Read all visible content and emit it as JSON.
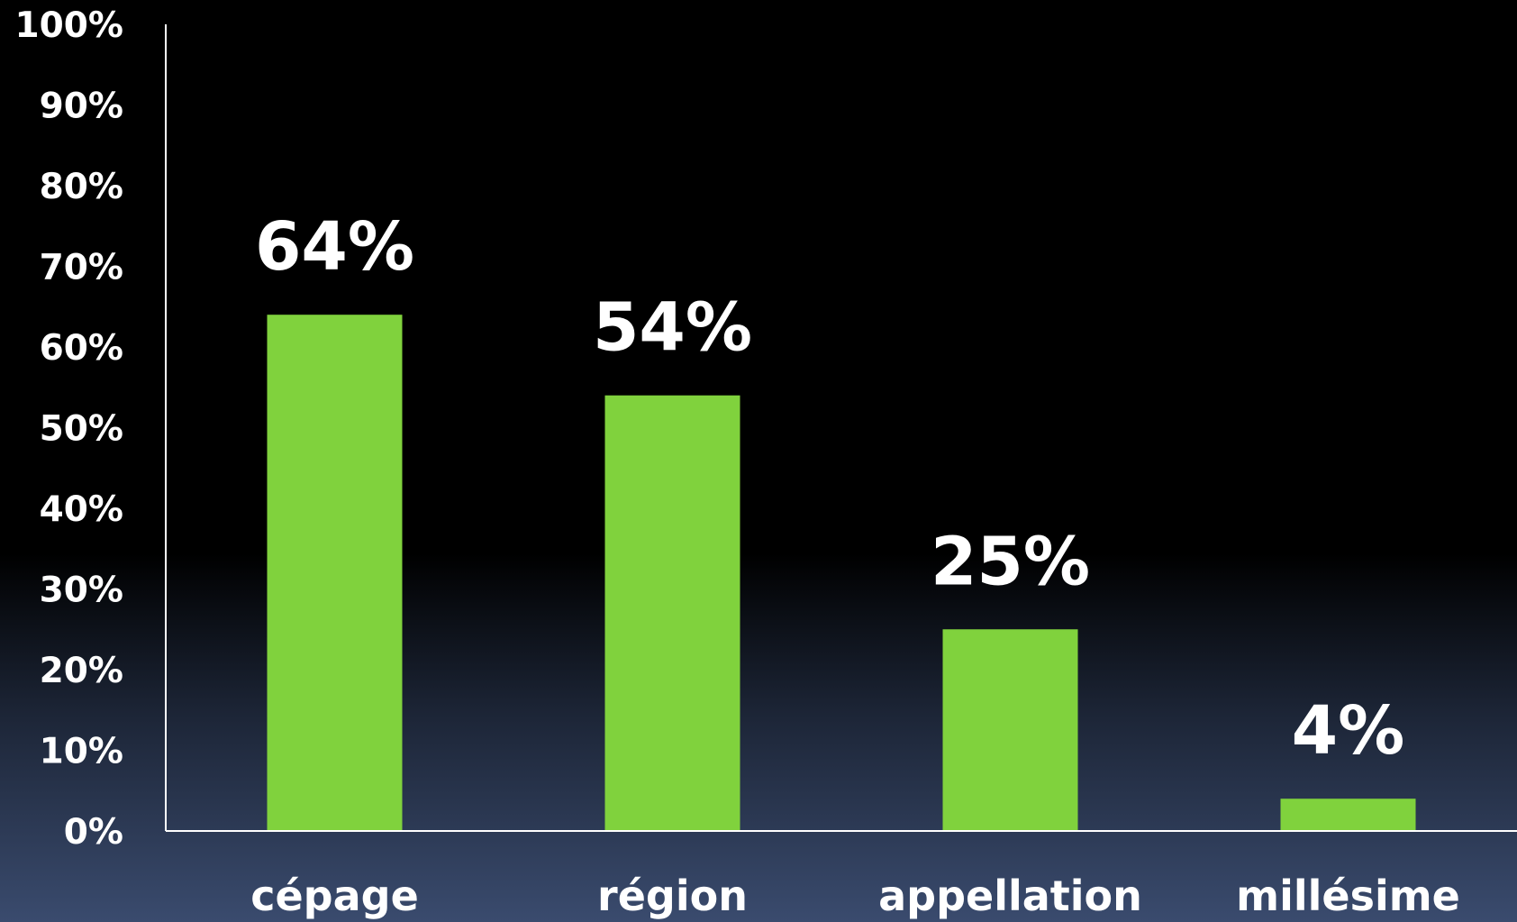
{
  "chart_data": {
    "type": "bar",
    "categories": [
      "cépage",
      "région",
      "appellation",
      "millésime"
    ],
    "values": [
      64,
      54,
      25,
      4
    ],
    "data_labels": [
      "64%",
      "54%",
      "25%",
      "4%"
    ],
    "y_tick_labels": [
      "0%",
      "10%",
      "20%",
      "30%",
      "40%",
      "50%",
      "60%",
      "70%",
      "80%",
      "90%",
      "100%"
    ],
    "ylim": [
      0,
      100
    ],
    "grid": false,
    "legend": "none",
    "colors": {
      "bar": "#80d23d",
      "text": "#ffffff",
      "axis": "#ffffff"
    }
  }
}
